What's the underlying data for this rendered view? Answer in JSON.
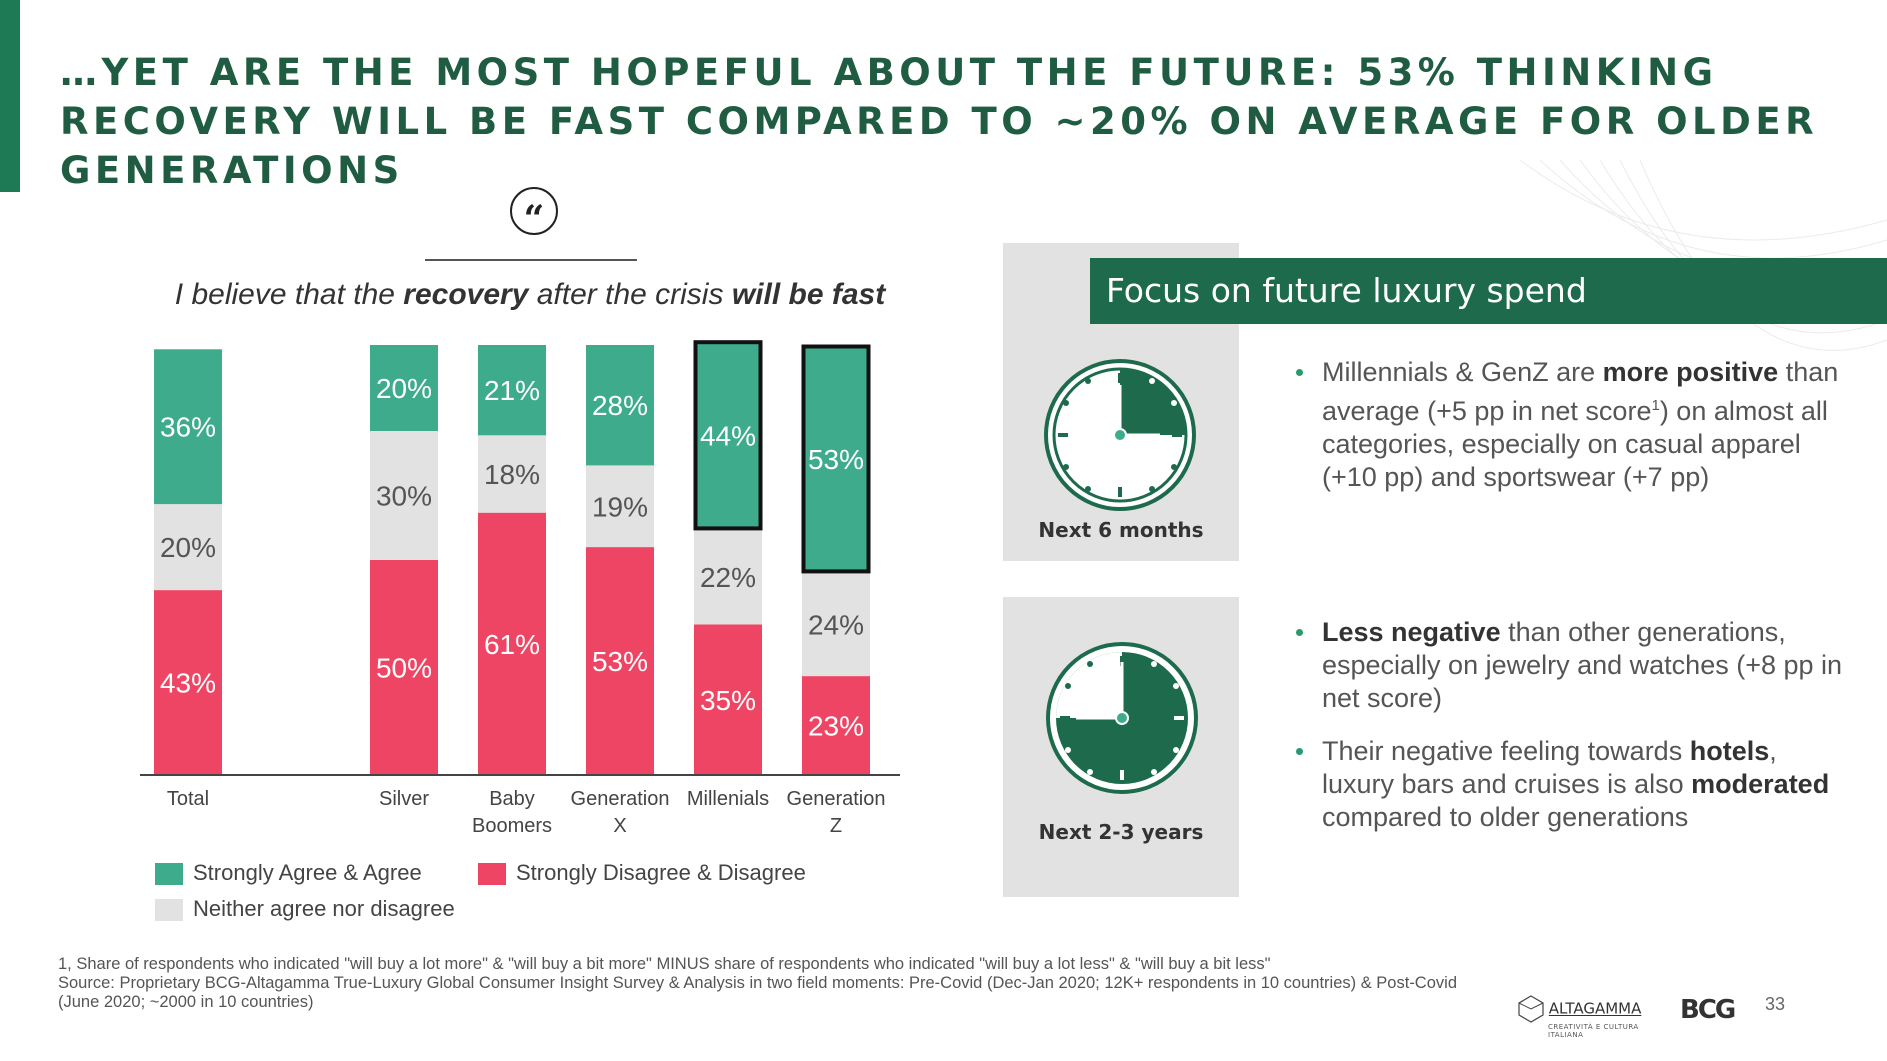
{
  "title": "…YET ARE THE MOST HOPEFUL ABOUT THE FUTURE: 53% THINKING RECOVERY WILL BE FAST COMPARED TO ~20% ON AVERAGE FOR OLDER GENERATIONS",
  "quote_icon": "quote-icon",
  "question": {
    "part1": "I believe that the ",
    "bold1": "recovery",
    "part2": " after the crisis ",
    "bold2": "will be fast"
  },
  "colors": {
    "agree": "#3dab8c",
    "neither": "#e2e2e2",
    "disagree": "#ef4564",
    "brand": "#1d6b4c"
  },
  "chart_data": {
    "type": "bar",
    "stacked": true,
    "title": "I believe that the recovery after the crisis will be fast",
    "categories": [
      "Total",
      "Silver",
      "Baby Boomers",
      "Generation X",
      "Millenials",
      "Generation Z"
    ],
    "category_lines": [
      [
        "Total"
      ],
      [
        "Silver"
      ],
      [
        "Baby",
        "Boomers"
      ],
      [
        "Generation",
        "X"
      ],
      [
        "Millenials"
      ],
      [
        "Generation",
        "Z"
      ]
    ],
    "series": [
      {
        "name": "Strongly Disagree & Disagree",
        "values": [
          43,
          50,
          61,
          53,
          35,
          23
        ]
      },
      {
        "name": "Neither agree nor disagree",
        "values": [
          20,
          30,
          18,
          19,
          22,
          24
        ]
      },
      {
        "name": "Strongly Agree & Agree",
        "values": [
          36,
          20,
          21,
          28,
          44,
          53
        ]
      }
    ],
    "labels": [
      [
        "43%",
        "20%",
        "36%"
      ],
      [
        "50%",
        "30%",
        "20%"
      ],
      [
        "61%",
        "18%",
        "21%"
      ],
      [
        "53%",
        "19%",
        "28%"
      ],
      [
        "35%",
        "22%",
        "44%"
      ],
      [
        "23%",
        "24%",
        "53%"
      ]
    ],
    "highlighted": [
      "Millenials",
      "Generation Z"
    ],
    "ylim": [
      0,
      100
    ]
  },
  "legend": {
    "agree": "Strongly Agree & Agree",
    "disagree": "Strongly Disagree & Disagree",
    "neither": "Neither agree nor disagree"
  },
  "focus": {
    "header": "Focus on future luxury spend",
    "clock1_label": "Next 6 months",
    "clock2_label": "Next 2-3 years"
  },
  "bullets": {
    "b1_pre": "Millennials & GenZ are ",
    "b1_bold": "more positive",
    "b1_post": " than average (+5 pp in net score",
    "b1_sup": "1",
    "b1_end": ") on almost all categories, especially on casual apparel (+10 pp) and sportswear (+7 pp)",
    "b2_bold": "Less negative",
    "b2_post": " than other generations, especially on jewelry and watches (+8 pp in net score)",
    "b3_pre": "Their negative feeling towards ",
    "b3_bold1": "hotels",
    "b3_mid": ", luxury bars and cruises is also ",
    "b3_bold2": "moderated",
    "b3_post": " compared to older generations"
  },
  "footnote": {
    "line1": "1, Share of respondents who indicated \"will buy a lot more\" & \"will buy a bit more\" MINUS share of respondents who indicated \"will buy a lot less\" & \"will buy a bit less\"",
    "line2": "Source: Proprietary BCG-Altagamma True-Luxury Global Consumer Insight Survey & Analysis in two field moments: Pre-Covid (Dec-Jan 2020; 12K+ respondents in 10 countries) & Post-Covid (June 2020; ~2000 in 10 countries)"
  },
  "logos": {
    "altagamma": "ALTAGAMMA",
    "altagamma_sub": "CREATIVITÀ E CULTURA ITALIANA",
    "bcg": "BCG"
  },
  "page_number": "33"
}
